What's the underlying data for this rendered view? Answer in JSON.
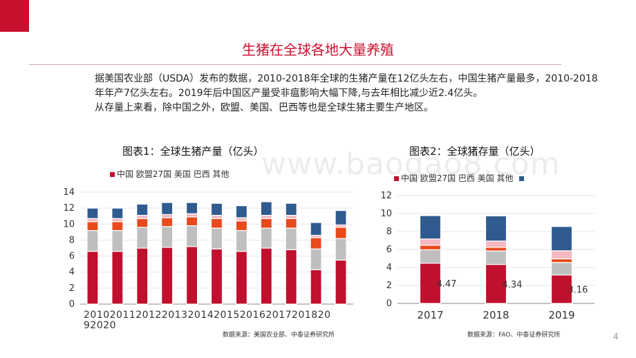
{
  "header": {
    "title": "生猪在全球各地大量养殖"
  },
  "intro": {
    "line1": "据美国农业部（USDA）发布的数据，2010-2018年全球的生猪产量在12亿头左右，中国生猪产量最多，2010-2018年年产7亿头左右。2019年后中国区产量受非瘟影响大幅下降,与去年相比减少近2.4亿头。",
    "line2": "从存量上来看，除中国之外，欧盟、美国、巴西等也是全球生猪主要生产地区。"
  },
  "chart1": {
    "label": "图表1：全球生猪产量（亿头）",
    "legend_text": "中国 欧盟27国 美国 巴西 其他",
    "source": "数据来源：美国农业部、中泰证券研究所",
    "x_axis_row1": "20102011201220132014201520162017201820",
    "x_axis_row2": "92020"
  },
  "chart2": {
    "label": "图表2：全球猪存量（亿头）",
    "legend_text": "中国 欧盟27国 巴西 美国 其他",
    "source": "数据来源：FAO、中泰证券研究所"
  },
  "page_number": "4",
  "watermark": "www.baogao8.com",
  "colors": {
    "accent": "#c8102e",
    "china": "#c0102e",
    "eu": "#bfbfbf",
    "us": "#e8491d",
    "brazil": "#f3b8c0",
    "other": "#2f5b8f"
  },
  "chart_data": [
    {
      "type": "bar",
      "stacked": true,
      "title": "图表1：全球生猪产量（亿头）",
      "categories": [
        "2010",
        "2011",
        "2012",
        "2013",
        "2014",
        "2015",
        "2016",
        "2017",
        "2018",
        "2019",
        "2020"
      ],
      "series": [
        {
          "name": "中国",
          "values": [
            6.6,
            6.6,
            7.0,
            7.1,
            7.2,
            6.9,
            6.6,
            7.0,
            6.8,
            4.3,
            5.5
          ]
        },
        {
          "name": "欧盟27国",
          "values": [
            2.6,
            2.6,
            2.6,
            2.6,
            2.6,
            2.6,
            2.6,
            2.5,
            2.7,
            2.6,
            2.7
          ]
        },
        {
          "name": "美国",
          "values": [
            1.1,
            1.1,
            1.1,
            1.1,
            1.1,
            1.2,
            1.2,
            1.2,
            1.2,
            1.4,
            1.4
          ]
        },
        {
          "name": "巴西",
          "values": [
            0.4,
            0.4,
            0.4,
            0.4,
            0.4,
            0.4,
            0.4,
            0.4,
            0.4,
            0.3,
            0.3
          ]
        },
        {
          "name": "其他",
          "values": [
            1.3,
            1.3,
            1.4,
            1.5,
            1.4,
            1.5,
            1.5,
            1.7,
            1.5,
            1.6,
            1.8
          ]
        }
      ],
      "ylim": [
        0,
        14
      ],
      "yticks": [
        0,
        2,
        4,
        6,
        8,
        10,
        12,
        14
      ],
      "xlabel": "",
      "ylabel": "",
      "legend": "top",
      "grid": true
    },
    {
      "type": "bar",
      "stacked": true,
      "title": "图表2：全球猪存量（亿头）",
      "categories": [
        "2017",
        "2018",
        "2019"
      ],
      "series": [
        {
          "name": "中国",
          "values": [
            4.47,
            4.34,
            3.16
          ],
          "labels": [
            "4.47",
            "4.34",
            "3.16"
          ]
        },
        {
          "name": "欧盟27国",
          "values": [
            1.5,
            1.5,
            1.4
          ]
        },
        {
          "name": "美国",
          "values": [
            0.5,
            0.4,
            0.4
          ]
        },
        {
          "name": "巴西",
          "values": [
            0.7,
            0.7,
            0.9
          ]
        },
        {
          "name": "其他",
          "values": [
            2.6,
            2.8,
            2.7
          ]
        }
      ],
      "ylim": [
        0,
        12
      ],
      "yticks": [
        0,
        2,
        4,
        6,
        8,
        10,
        12
      ],
      "xlabel": "",
      "ylabel": "",
      "legend": "top",
      "grid": true
    }
  ]
}
